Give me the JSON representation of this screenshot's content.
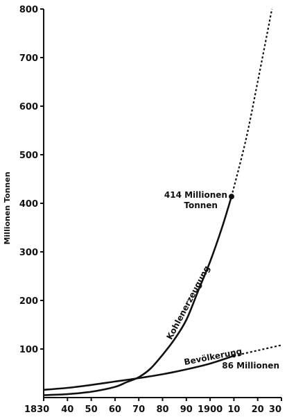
{
  "chart_data": {
    "type": "line",
    "title": "",
    "xlabel": "",
    "ylabel": "Millionen Tonnen",
    "xlim": [
      1830,
      1930
    ],
    "ylim": [
      0,
      800
    ],
    "x_ticks": [
      1830,
      1840,
      1850,
      1860,
      1870,
      1880,
      1890,
      1900,
      1910,
      1920,
      1930
    ],
    "x_tick_labels": [
      "1830",
      "40",
      "50",
      "60",
      "70",
      "80",
      "90",
      "1900",
      "10",
      "20",
      "30"
    ],
    "y_ticks": [
      100,
      200,
      300,
      400,
      500,
      600,
      700,
      800
    ],
    "y_tick_labels": [
      "100",
      "200",
      "300",
      "400",
      "500",
      "600",
      "700",
      "800"
    ],
    "grid": false,
    "series": [
      {
        "name": "Kohlenerzeugung",
        "x": [
          1830,
          1840,
          1850,
          1860,
          1865,
          1870,
          1875,
          1880,
          1885,
          1890,
          1895,
          1900,
          1905,
          1909
        ],
        "y": [
          5,
          7,
          12,
          22,
          32,
          42,
          60,
          88,
          120,
          160,
          220,
          280,
          350,
          414
        ],
        "projection_x": [
          1909,
          1915,
          1920,
          1926
        ],
        "projection_y": [
          414,
          530,
          650,
          800
        ]
      },
      {
        "name": "Bevölkerung",
        "x": [
          1830,
          1840,
          1850,
          1860,
          1870,
          1880,
          1890,
          1900,
          1910
        ],
        "y": [
          16,
          20,
          26,
          33,
          40,
          48,
          58,
          70,
          86
        ],
        "projection_x": [
          1910,
          1920,
          1930
        ],
        "projection_y": [
          86,
          97,
          108
        ]
      }
    ],
    "annotations": [
      {
        "text_lines": [
          "414 Millionen",
          "Tonnen"
        ],
        "x": 1909,
        "y": 414
      },
      {
        "text_lines": [
          "86 Millionen"
        ],
        "x": 1910,
        "y": 86
      }
    ]
  }
}
